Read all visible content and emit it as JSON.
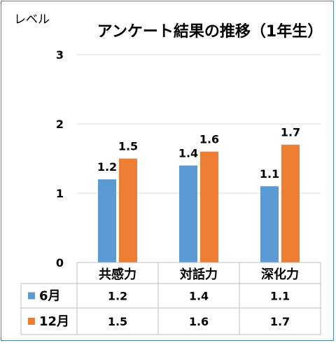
{
  "chart_data": {
    "type": "bar",
    "title": "アンケート結果の推移（1年生）",
    "ylabel": "レベル",
    "ylim": [
      0,
      3
    ],
    "yticks": [
      "0",
      "1",
      "2",
      "3"
    ],
    "categories": [
      "共感力",
      "対話力",
      "深化力"
    ],
    "series": [
      {
        "name": "6月",
        "color": "#5b9bd5",
        "values": [
          1.2,
          1.4,
          1.1
        ],
        "labels": [
          "1.2",
          "1.4",
          "1.1"
        ]
      },
      {
        "name": "12月",
        "color": "#ed7d31",
        "values": [
          1.5,
          1.6,
          1.7
        ],
        "labels": [
          "1.5",
          "1.6",
          "1.7"
        ]
      }
    ],
    "grid": true,
    "data_table": true
  }
}
